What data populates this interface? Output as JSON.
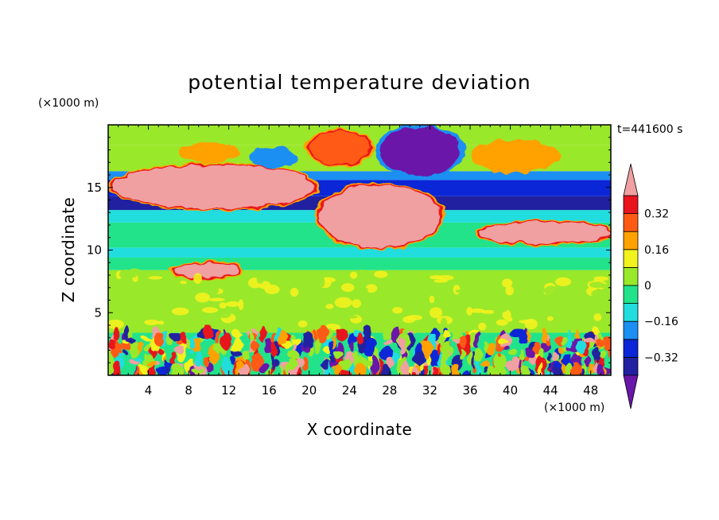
{
  "chart_data": {
    "type": "heatmap",
    "title": "potential temperature deviation",
    "xlabel": "X coordinate",
    "ylabel": "Z coordinate",
    "x_unit": "(×1000 m)",
    "y_unit": "(×1000 m)",
    "time_label": "t=441600 s",
    "xlim": [
      0,
      50
    ],
    "ylim": [
      0,
      20
    ],
    "x_ticks": [
      {
        "value": 4,
        "label": "4"
      },
      {
        "value": 8,
        "label": "8"
      },
      {
        "value": 12,
        "label": "12"
      },
      {
        "value": 16,
        "label": "16"
      },
      {
        "value": 20,
        "label": "20"
      },
      {
        "value": 24,
        "label": "24"
      },
      {
        "value": 28,
        "label": "28"
      },
      {
        "value": 32,
        "label": "32"
      },
      {
        "value": 36,
        "label": "36"
      },
      {
        "value": 40,
        "label": "40"
      },
      {
        "value": 44,
        "label": "44"
      },
      {
        "value": 48,
        "label": "48"
      }
    ],
    "y_ticks": [
      {
        "value": 5,
        "label": "5"
      },
      {
        "value": 10,
        "label": "10"
      },
      {
        "value": 15,
        "label": "15"
      }
    ],
    "colorbar": {
      "levels": [
        -0.4,
        -0.32,
        -0.24,
        -0.16,
        -0.08,
        0,
        0.08,
        0.16,
        0.24,
        0.32,
        0.4
      ],
      "labels": [
        {
          "value": -0.32,
          "label": "−0.32"
        },
        {
          "value": -0.16,
          "label": "−0.16"
        },
        {
          "value": 0,
          "label": "0"
        },
        {
          "value": 0.16,
          "label": "0.16"
        },
        {
          "value": 0.32,
          "label": "0.32"
        }
      ],
      "colors": [
        "#6a16a8",
        "#2020a0",
        "#0a26d6",
        "#1c8ff2",
        "#21dddd",
        "#22e38a",
        "#9ae82a",
        "#f2f21e",
        "#ffa200",
        "#ff5a14",
        "#e8141e",
        "#f0a0a0"
      ],
      "under_color": "#6a16a8",
      "over_color": "#f0a0a0"
    },
    "bands": [
      {
        "z": [
          0,
          3.4
        ],
        "value": "mixed",
        "description": ""
      },
      {
        "z": [
          3.4,
          8.4
        ],
        "value": 0.04
      },
      {
        "z": [
          8.4,
          9.4
        ],
        "value": -0.06
      },
      {
        "z": [
          9.4,
          10.2
        ],
        "value": -0.12
      },
      {
        "z": [
          10.2,
          12.2
        ],
        "value": -0.02
      },
      {
        "z": [
          12.2,
          13.2
        ],
        "value": -0.12
      },
      {
        "z": [
          13.2,
          14.3
        ],
        "value": -0.34
      },
      {
        "z": [
          14.3,
          15.6
        ],
        "value": -0.3
      },
      {
        "z": [
          15.6,
          16.3
        ],
        "value": -0.2
      },
      {
        "z": [
          16.3,
          18.4
        ],
        "value": 0.06
      },
      {
        "z": [
          18.4,
          20
        ],
        "value": 0.02
      }
    ],
    "features": [
      {
        "x": [
          0.5,
          20.5
        ],
        "z": [
          13.3,
          16.8
        ],
        "value": 0.45
      },
      {
        "x": [
          21,
          33
        ],
        "z": [
          10.2,
          15.2
        ],
        "value": 0.45
      },
      {
        "x": [
          37,
          50
        ],
        "z": [
          10.5,
          12.2
        ],
        "value": 0.45
      },
      {
        "x": [
          6.5,
          13
        ],
        "z": [
          7.8,
          9.0
        ],
        "value": 0.45
      },
      {
        "x": [
          20,
          26
        ],
        "z": [
          16.8,
          19.5
        ],
        "value": 0.3
      },
      {
        "x": [
          27,
          35
        ],
        "z": [
          16.0,
          19.8
        ],
        "value": -0.42
      },
      {
        "x": [
          36,
          45
        ],
        "z": [
          16.2,
          18.8
        ],
        "value": 0.2
      },
      {
        "x": [
          7,
          13
        ],
        "z": [
          17,
          18.6
        ],
        "value": 0.2
      },
      {
        "x": [
          14,
          19
        ],
        "z": [
          16.6,
          18.2
        ],
        "value": -0.2
      }
    ]
  }
}
